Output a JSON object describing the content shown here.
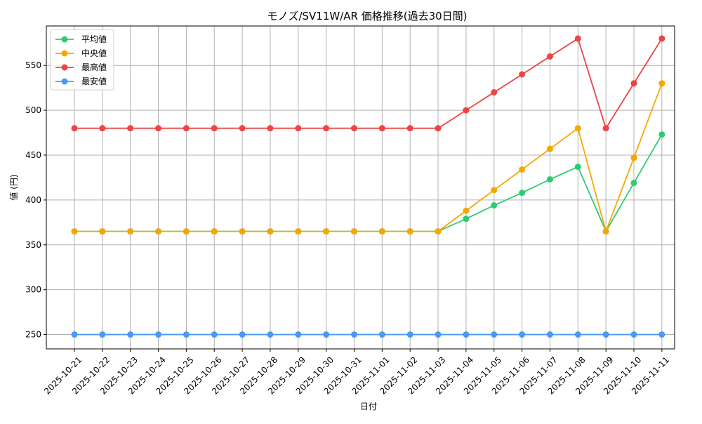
{
  "chart_data": {
    "type": "line",
    "title": "モノズ/SV11W/AR 価格推移(過去30日間)",
    "xlabel": "日付",
    "ylabel": "値 (円)",
    "categories": [
      "2025-10-21",
      "2025-10-22",
      "2025-10-23",
      "2025-10-24",
      "2025-10-25",
      "2025-10-26",
      "2025-10-27",
      "2025-10-28",
      "2025-10-29",
      "2025-10-30",
      "2025-10-31",
      "2025-11-01",
      "2025-11-02",
      "2025-11-03",
      "2025-11-04",
      "2025-11-05",
      "2025-11-06",
      "2025-11-07",
      "2025-11-08",
      "2025-11-09",
      "2025-11-10",
      "2025-11-11"
    ],
    "ylim": [
      234,
      594
    ],
    "yticks": [
      250,
      300,
      350,
      400,
      450,
      500,
      550
    ],
    "grid": true,
    "legend_position": "top-left",
    "series": [
      {
        "name": "平均値",
        "color": "#2ecc71",
        "values": [
          365,
          365,
          365,
          365,
          365,
          365,
          365,
          365,
          365,
          365,
          365,
          365,
          365,
          365,
          379,
          394,
          408,
          423,
          437,
          365,
          419,
          473
        ]
      },
      {
        "name": "中央値",
        "color": "#f5a700",
        "values": [
          365,
          365,
          365,
          365,
          365,
          365,
          365,
          365,
          365,
          365,
          365,
          365,
          365,
          365,
          388,
          411,
          434,
          457,
          480,
          365,
          447,
          530
        ]
      },
      {
        "name": "最高値",
        "color": "#ee4444",
        "values": [
          480,
          480,
          480,
          480,
          480,
          480,
          480,
          480,
          480,
          480,
          480,
          480,
          480,
          480,
          500,
          520,
          540,
          560,
          580,
          480,
          530,
          580
        ]
      },
      {
        "name": "最安値",
        "color": "#4a9af5",
        "values": [
          250,
          250,
          250,
          250,
          250,
          250,
          250,
          250,
          250,
          250,
          250,
          250,
          250,
          250,
          250,
          250,
          250,
          250,
          250,
          250,
          250,
          250
        ]
      }
    ]
  }
}
